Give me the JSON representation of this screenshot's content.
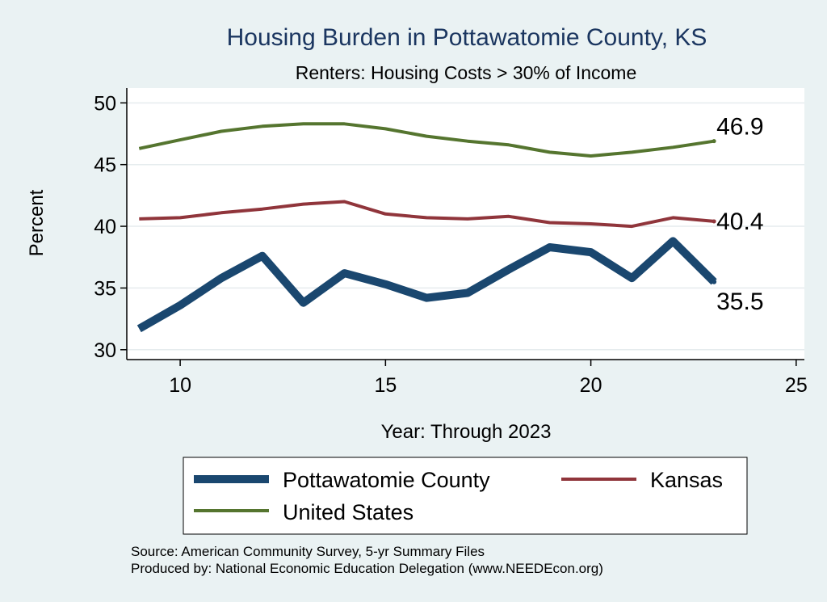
{
  "chart_data": {
    "type": "line",
    "title": "Housing Burden in Pottawatomie County, KS",
    "subtitle": "Renters: Housing Costs > 30% of Income",
    "xlabel": "Year: Through 2023",
    "ylabel": "Percent",
    "xlim": [
      8.7,
      25.2
    ],
    "ylim": [
      29.2,
      51.2
    ],
    "xticks": [
      "10",
      "15",
      "20",
      "25"
    ],
    "yticks": [
      "30",
      "35",
      "40",
      "45",
      "50"
    ],
    "grid": true,
    "legend_position": "bottom",
    "x": [
      9,
      10,
      11,
      12,
      13,
      14,
      15,
      16,
      17,
      18,
      19,
      20,
      21,
      22,
      23
    ],
    "series": [
      {
        "name": "Pottawatomie County",
        "color": "#1a476f",
        "values": [
          31.7,
          33.6,
          35.8,
          37.6,
          33.8,
          36.2,
          35.3,
          34.2,
          34.6,
          36.5,
          38.3,
          37.9,
          35.8,
          38.8,
          35.5
        ],
        "end_label": "35.5"
      },
      {
        "name": "Kansas",
        "color": "#90353b",
        "values": [
          40.6,
          40.7,
          41.1,
          41.4,
          41.8,
          42.0,
          41.0,
          40.7,
          40.6,
          40.8,
          40.3,
          40.2,
          40.0,
          40.7,
          40.4
        ],
        "end_label": "40.4"
      },
      {
        "name": "United States",
        "color": "#55752f",
        "values": [
          46.3,
          47.0,
          47.7,
          48.1,
          48.3,
          48.3,
          47.9,
          47.3,
          46.9,
          46.6,
          46.0,
          45.7,
          46.0,
          46.4,
          46.9
        ],
        "end_label": "46.9"
      }
    ]
  },
  "footer": {
    "source": "Source: American Community Survey, 5-yr Summary Files",
    "producer": "Produced by: National Economic Education Delegation (www.NEEDEcon.org)"
  }
}
